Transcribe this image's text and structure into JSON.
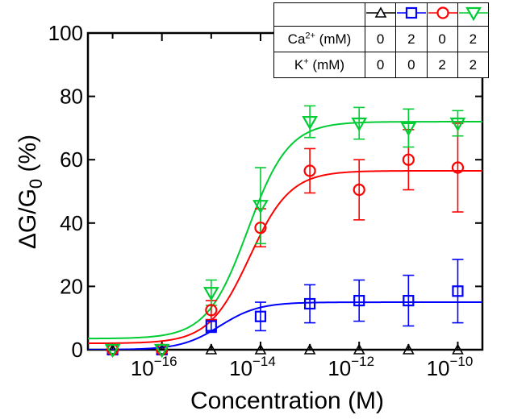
{
  "chart_data": {
    "type": "scatter",
    "xlabel": "Concentration (M)",
    "ylabel_main": "ΔG/G",
    "ylabel_sub": "0",
    "ylabel_unit": " (%)",
    "xscale": "log",
    "xlim": [
      3.16e-18,
      3.16e-10
    ],
    "ylim": [
      0,
      100
    ],
    "x_ticks": [
      {
        "value": 1e-16,
        "base": "10",
        "exp": "−16"
      },
      {
        "value": 1e-14,
        "base": "10",
        "exp": "−14"
      },
      {
        "value": 1e-12,
        "base": "10",
        "exp": "−12"
      },
      {
        "value": 1e-10,
        "base": "10",
        "exp": "−10"
      }
    ],
    "y_ticks": [
      "0",
      "20",
      "40",
      "60",
      "80",
      "100"
    ],
    "grid": false,
    "series": [
      {
        "key": "s1",
        "color": "#000000",
        "marker": "triangle-up",
        "x": [
          1e-17,
          1e-16,
          1e-15,
          1e-14,
          1e-13,
          1e-12,
          1e-11,
          1e-10
        ],
        "y": [
          0,
          0,
          0,
          0,
          0,
          0,
          0,
          0
        ],
        "err": [
          0,
          0,
          0,
          0,
          0,
          0,
          0,
          0
        ],
        "fit": {
          "bottom": 0,
          "top": 0,
          "ec50": 1e-14,
          "hill": 1
        }
      },
      {
        "key": "s2",
        "color": "#0000ff",
        "marker": "square",
        "x": [
          1e-17,
          1e-16,
          1e-15,
          1e-14,
          1e-13,
          1e-12,
          1e-11,
          1e-10
        ],
        "y": [
          0,
          0,
          7.5,
          10.5,
          14.5,
          15.5,
          15.5,
          18.5
        ],
        "err": [
          0,
          0,
          2,
          4.5,
          6,
          6.5,
          8,
          10
        ],
        "fit": {
          "bottom": 0,
          "top": 15,
          "ec50": 1.5e-15,
          "hill": 1.1
        }
      },
      {
        "key": "s3",
        "color": "#ff0000",
        "marker": "circle",
        "x": [
          1e-17,
          1e-16,
          1e-15,
          1e-14,
          1e-13,
          1e-12,
          1e-11,
          1e-10
        ],
        "y": [
          0,
          0,
          12.5,
          38.5,
          56.5,
          50.5,
          60,
          57.5
        ],
        "err": [
          0,
          0,
          3,
          6,
          7,
          9.5,
          9.5,
          14
        ],
        "fit": {
          "bottom": 2,
          "top": 56.5,
          "ec50": 6e-15,
          "hill": 1.05
        }
      },
      {
        "key": "s4",
        "color": "#00cc33",
        "marker": "triangle-down",
        "x": [
          1e-17,
          1e-16,
          1e-15,
          1e-14,
          1e-13,
          1e-12,
          1e-11,
          1e-10
        ],
        "y": [
          0,
          0,
          18,
          45.5,
          72,
          71.5,
          70,
          71.5
        ],
        "err": [
          0,
          0,
          4,
          12,
          5,
          5,
          6,
          4
        ],
        "fit": {
          "bottom": 3.5,
          "top": 72,
          "ec50": 5.5e-15,
          "hill": 1.05
        }
      }
    ],
    "conditions_table": {
      "rows": [
        {
          "label_main": "Ca",
          "label_sup": "2+",
          "label_unit": " (mM)",
          "values": [
            "0",
            "2",
            "0",
            "2"
          ]
        },
        {
          "label_main": "K",
          "label_sup": "+",
          "label_unit": " (mM)",
          "values": [
            "0",
            "0",
            "2",
            "2"
          ]
        }
      ]
    }
  }
}
